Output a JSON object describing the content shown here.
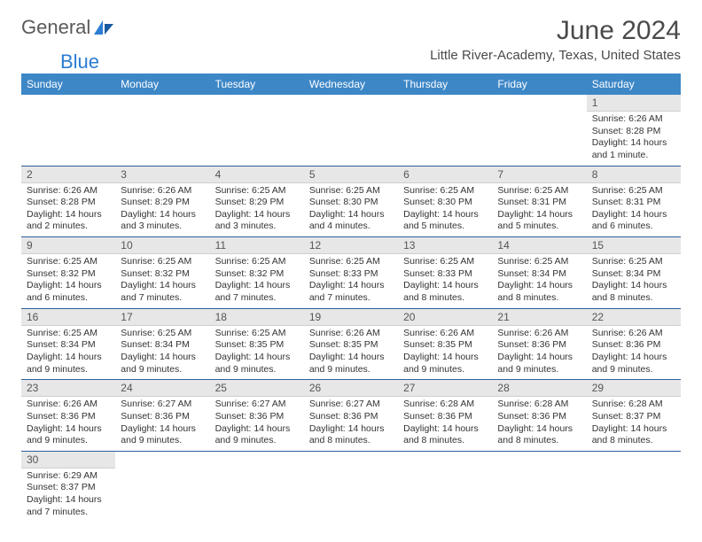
{
  "brand": {
    "part1": "General",
    "part2": "Blue"
  },
  "title": "June 2024",
  "location": "Little River-Academy, Texas, United States",
  "colors": {
    "header_bg": "#3d87c7",
    "header_text": "#ffffff",
    "daynum_bg": "#e7e7e7",
    "row_border": "#2b5f9e",
    "title_color": "#4a4a4a",
    "logo_gray": "#5a5a5a",
    "logo_blue": "#2b7cd3"
  },
  "weekdays": [
    "Sunday",
    "Monday",
    "Tuesday",
    "Wednesday",
    "Thursday",
    "Friday",
    "Saturday"
  ],
  "weeks": [
    [
      null,
      null,
      null,
      null,
      null,
      null,
      {
        "n": "1",
        "sr": "6:26 AM",
        "ss": "8:28 PM",
        "dl": "14 hours and 1 minute."
      }
    ],
    [
      {
        "n": "2",
        "sr": "6:26 AM",
        "ss": "8:28 PM",
        "dl": "14 hours and 2 minutes."
      },
      {
        "n": "3",
        "sr": "6:26 AM",
        "ss": "8:29 PM",
        "dl": "14 hours and 3 minutes."
      },
      {
        "n": "4",
        "sr": "6:25 AM",
        "ss": "8:29 PM",
        "dl": "14 hours and 3 minutes."
      },
      {
        "n": "5",
        "sr": "6:25 AM",
        "ss": "8:30 PM",
        "dl": "14 hours and 4 minutes."
      },
      {
        "n": "6",
        "sr": "6:25 AM",
        "ss": "8:30 PM",
        "dl": "14 hours and 5 minutes."
      },
      {
        "n": "7",
        "sr": "6:25 AM",
        "ss": "8:31 PM",
        "dl": "14 hours and 5 minutes."
      },
      {
        "n": "8",
        "sr": "6:25 AM",
        "ss": "8:31 PM",
        "dl": "14 hours and 6 minutes."
      }
    ],
    [
      {
        "n": "9",
        "sr": "6:25 AM",
        "ss": "8:32 PM",
        "dl": "14 hours and 6 minutes."
      },
      {
        "n": "10",
        "sr": "6:25 AM",
        "ss": "8:32 PM",
        "dl": "14 hours and 7 minutes."
      },
      {
        "n": "11",
        "sr": "6:25 AM",
        "ss": "8:32 PM",
        "dl": "14 hours and 7 minutes."
      },
      {
        "n": "12",
        "sr": "6:25 AM",
        "ss": "8:33 PM",
        "dl": "14 hours and 7 minutes."
      },
      {
        "n": "13",
        "sr": "6:25 AM",
        "ss": "8:33 PM",
        "dl": "14 hours and 8 minutes."
      },
      {
        "n": "14",
        "sr": "6:25 AM",
        "ss": "8:34 PM",
        "dl": "14 hours and 8 minutes."
      },
      {
        "n": "15",
        "sr": "6:25 AM",
        "ss": "8:34 PM",
        "dl": "14 hours and 8 minutes."
      }
    ],
    [
      {
        "n": "16",
        "sr": "6:25 AM",
        "ss": "8:34 PM",
        "dl": "14 hours and 9 minutes."
      },
      {
        "n": "17",
        "sr": "6:25 AM",
        "ss": "8:34 PM",
        "dl": "14 hours and 9 minutes."
      },
      {
        "n": "18",
        "sr": "6:25 AM",
        "ss": "8:35 PM",
        "dl": "14 hours and 9 minutes."
      },
      {
        "n": "19",
        "sr": "6:26 AM",
        "ss": "8:35 PM",
        "dl": "14 hours and 9 minutes."
      },
      {
        "n": "20",
        "sr": "6:26 AM",
        "ss": "8:35 PM",
        "dl": "14 hours and 9 minutes."
      },
      {
        "n": "21",
        "sr": "6:26 AM",
        "ss": "8:36 PM",
        "dl": "14 hours and 9 minutes."
      },
      {
        "n": "22",
        "sr": "6:26 AM",
        "ss": "8:36 PM",
        "dl": "14 hours and 9 minutes."
      }
    ],
    [
      {
        "n": "23",
        "sr": "6:26 AM",
        "ss": "8:36 PM",
        "dl": "14 hours and 9 minutes."
      },
      {
        "n": "24",
        "sr": "6:27 AM",
        "ss": "8:36 PM",
        "dl": "14 hours and 9 minutes."
      },
      {
        "n": "25",
        "sr": "6:27 AM",
        "ss": "8:36 PM",
        "dl": "14 hours and 9 minutes."
      },
      {
        "n": "26",
        "sr": "6:27 AM",
        "ss": "8:36 PM",
        "dl": "14 hours and 8 minutes."
      },
      {
        "n": "27",
        "sr": "6:28 AM",
        "ss": "8:36 PM",
        "dl": "14 hours and 8 minutes."
      },
      {
        "n": "28",
        "sr": "6:28 AM",
        "ss": "8:36 PM",
        "dl": "14 hours and 8 minutes."
      },
      {
        "n": "29",
        "sr": "6:28 AM",
        "ss": "8:37 PM",
        "dl": "14 hours and 8 minutes."
      }
    ],
    [
      {
        "n": "30",
        "sr": "6:29 AM",
        "ss": "8:37 PM",
        "dl": "14 hours and 7 minutes."
      },
      null,
      null,
      null,
      null,
      null,
      null
    ]
  ],
  "labels": {
    "sunrise": "Sunrise:",
    "sunset": "Sunset:",
    "daylight": "Daylight:"
  }
}
